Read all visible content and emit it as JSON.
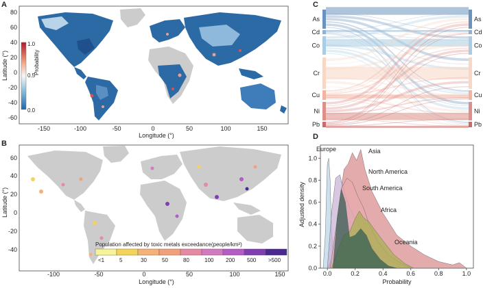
{
  "chart_data": [
    {
      "panel": "A",
      "type": "heatmap",
      "title": "",
      "xlabel": "Longitude (°)",
      "ylabel": "Latitude (°)",
      "xticks": [
        "-150",
        "-100",
        "-50",
        "0",
        "50",
        "100",
        "150"
      ],
      "yticks": [
        "80",
        "60",
        "40",
        "20",
        "0",
        "-20",
        "-40",
        "-60"
      ],
      "colorbar": {
        "label": "Probability",
        "ticks": [
          "1.0",
          "0.5",
          "0.0"
        ],
        "colors": [
          "#b2182b",
          "#f4a582",
          "#f7f7f7",
          "#92c5de",
          "#2166ac"
        ]
      }
    },
    {
      "panel": "B",
      "type": "heatmap",
      "xlabel": "Longitude (°)",
      "ylabel": "Latitude (°)",
      "xticks": [
        "-100",
        "-50",
        "0",
        "50",
        "100",
        "150"
      ],
      "yticks": [
        "60",
        "40",
        "20",
        "0",
        "-20",
        "-40"
      ],
      "legend": {
        "title": "Population affected by toxic metals exceedance(people/km²)",
        "labels": [
          "<1",
          "5",
          "30",
          "50",
          "80",
          "100",
          "200",
          "500",
          ">500"
        ],
        "colors": [
          "#f7f39a",
          "#f3d35a",
          "#f4b27a",
          "#f0a07a",
          "#e58aa5",
          "#d07ac0",
          "#b25cc4",
          "#7f3fb0",
          "#4b2a8f"
        ]
      }
    },
    {
      "panel": "C",
      "type": "sankey",
      "nodes": [
        "As",
        "Cd",
        "Co",
        "Cr",
        "Cu",
        "Ni",
        "Pb"
      ],
      "colors": {
        "As": "#6b93be",
        "Cd": "#8fb2d2",
        "Co": "#a9cde2",
        "Cr": "#f8d7c6",
        "Cu": "#f2b3a0",
        "Ni": "#dd8f8b",
        "Pb": "#c96b6b"
      }
    },
    {
      "panel": "D",
      "type": "area",
      "xlabel": "Probability",
      "ylabel": "Adjusted density",
      "xticks": [
        "0.0",
        "0.2",
        "0.4",
        "0.6",
        "0.8",
        "1.0"
      ],
      "yticks": [
        "0.0",
        "0.2",
        "0.4",
        "0.6",
        "0.8",
        "1.0"
      ],
      "xlim": [
        -0.05,
        1.05
      ],
      "ylim": [
        0,
        1.12
      ],
      "series": [
        {
          "name": "Europe",
          "color": "#b9d4e6",
          "x": [
            -0.03,
            -0.015,
            0.0,
            0.01,
            0.02,
            0.03,
            0.045,
            0.07
          ],
          "y": [
            0,
            0.3,
            0.95,
            1.0,
            0.8,
            0.35,
            0.08,
            0
          ]
        },
        {
          "name": "Asia",
          "color": "#d98a8e",
          "x": [
            0.0,
            0.04,
            0.08,
            0.12,
            0.15,
            0.18,
            0.21,
            0.24,
            0.27,
            0.32,
            0.4,
            0.5,
            0.6,
            0.7,
            0.8,
            0.9,
            0.95,
            1.0
          ],
          "y": [
            0,
            0.1,
            0.55,
            0.9,
            0.95,
            1.05,
            0.98,
            1.08,
            0.9,
            0.7,
            0.5,
            0.3,
            0.2,
            0.12,
            0.06,
            0.03,
            0.05,
            0
          ]
        },
        {
          "name": "North America",
          "color": "#c8b2d6",
          "x": [
            0.0,
            0.03,
            0.06,
            0.09,
            0.12,
            0.16,
            0.2,
            0.26,
            0.32,
            0.4,
            0.5,
            0.6
          ],
          "y": [
            0,
            0.5,
            0.82,
            0.85,
            0.7,
            0.55,
            0.45,
            0.3,
            0.2,
            0.1,
            0.04,
            0
          ]
        },
        {
          "name": "South America",
          "color": "#e7a9ad",
          "x": [
            0.02,
            0.06,
            0.1,
            0.14,
            0.18,
            0.22,
            0.26,
            0.3,
            0.36,
            0.44,
            0.52,
            0.6
          ],
          "y": [
            0,
            0.35,
            0.72,
            0.82,
            0.78,
            0.65,
            0.55,
            0.4,
            0.25,
            0.12,
            0.05,
            0
          ]
        },
        {
          "name": "Africa",
          "color": "#a7b04d",
          "x": [
            0.03,
            0.08,
            0.12,
            0.16,
            0.2,
            0.23,
            0.26,
            0.3,
            0.34,
            0.4,
            0.48,
            0.56,
            0.62
          ],
          "y": [
            0,
            0.18,
            0.3,
            0.33,
            0.45,
            0.52,
            0.46,
            0.42,
            0.35,
            0.25,
            0.12,
            0.04,
            0
          ]
        },
        {
          "name": "Oceania",
          "color": "#2f5c53",
          "x": [
            0.04,
            0.07,
            0.1,
            0.13,
            0.16,
            0.2,
            0.24,
            0.28,
            0.32,
            0.38,
            0.44,
            0.5
          ],
          "y": [
            0,
            0.45,
            0.72,
            0.6,
            0.28,
            0.3,
            0.36,
            0.3,
            0.18,
            0.08,
            0.02,
            0
          ]
        }
      ]
    }
  ],
  "labels": {
    "A": "A",
    "B": "B",
    "C": "C",
    "D": "D"
  }
}
